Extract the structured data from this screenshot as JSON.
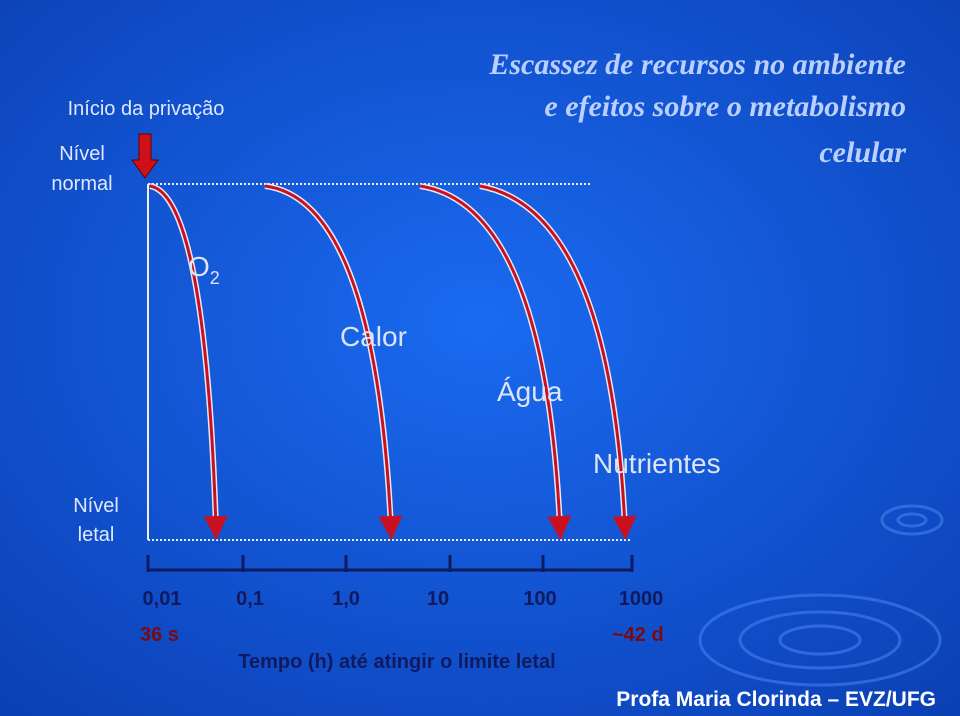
{
  "title": {
    "lines": [
      "Escassez de recursos no ambiente",
      "e efeitos sobre o metabolismo",
      "celular"
    ]
  },
  "start_label": "Início da privação",
  "levels": {
    "normal": [
      "Nível",
      "normal"
    ],
    "lethal": [
      "Nível",
      "letal"
    ]
  },
  "curves": [
    {
      "label": "O",
      "subscript": "2"
    },
    {
      "label": "Calor"
    },
    {
      "label": "Água"
    },
    {
      "label": "Nutrientes"
    }
  ],
  "axis": {
    "ticks": [
      "0,01",
      "0,1",
      "1,0",
      "10",
      "100",
      "1000"
    ],
    "start_note": "36 s",
    "end_note": "~42 d",
    "label": "Tempo (h) até atingir o limite letal"
  },
  "footer": "Profa Maria Clorinda – EVZ/UFG"
}
